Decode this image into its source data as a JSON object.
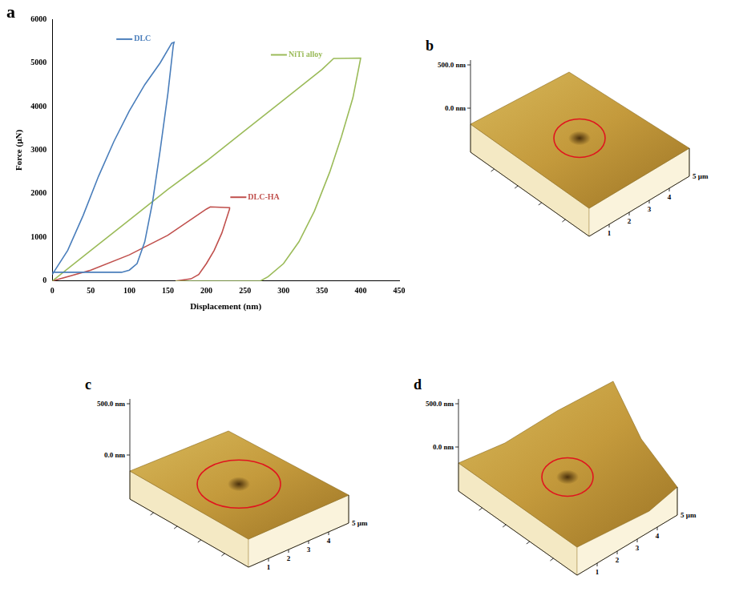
{
  "chart_data": {
    "type": "line",
    "panel_letter": "a",
    "x_label": "Displacement (nm)",
    "y_label": "Force (µN)",
    "xlim": [
      0,
      450
    ],
    "xticks": [
      0,
      50,
      100,
      150,
      200,
      250,
      300,
      350,
      400,
      450
    ],
    "ylim": [
      0,
      6000
    ],
    "yticks": [
      0,
      1000,
      2000,
      3000,
      4000,
      5000,
      6000
    ],
    "grid": false,
    "series": [
      {
        "name": "DLC",
        "color": "#4a7ebb",
        "x": [
          0,
          20,
          40,
          60,
          80,
          100,
          120,
          140,
          155,
          158,
          157,
          150,
          140,
          130,
          120,
          110,
          100,
          90,
          50,
          0
        ],
        "values": [
          150,
          700,
          1500,
          2400,
          3200,
          3900,
          4500,
          5000,
          5450,
          5470,
          5400,
          4300,
          3000,
          1800,
          900,
          400,
          250,
          200,
          200,
          200
        ]
      },
      {
        "name": "NiTi alloy",
        "color": "#9bbb59",
        "x": [
          0,
          50,
          100,
          150,
          200,
          250,
          300,
          350,
          365,
          400,
          400,
          390,
          375,
          360,
          340,
          320,
          300,
          280,
          270,
          160
        ],
        "values": [
          0,
          700,
          1400,
          2100,
          2750,
          3450,
          4150,
          4850,
          5100,
          5110,
          5100,
          4200,
          3300,
          2500,
          1600,
          900,
          400,
          100,
          0,
          0
        ]
      },
      {
        "name": "DLC-HA",
        "color": "#c0504d",
        "x": [
          0,
          50,
          100,
          150,
          200,
          205,
          230,
          230,
          220,
          210,
          200,
          190,
          180,
          160
        ],
        "values": [
          0,
          250,
          600,
          1050,
          1650,
          1700,
          1680,
          1650,
          1100,
          700,
          400,
          150,
          50,
          0
        ]
      }
    ]
  },
  "afm_panels": [
    {
      "letter": "b",
      "z_labels": [
        "500.0 nm",
        "0.0 nm"
      ],
      "axis_ticks": [
        "1",
        "2",
        "3",
        "4"
      ],
      "axis_end": "5 µm"
    },
    {
      "letter": "c",
      "z_labels": [
        "500.0 nm",
        "0.0 nm"
      ],
      "axis_ticks": [
        "1",
        "2",
        "3",
        "4"
      ],
      "axis_end": "5 µm"
    },
    {
      "letter": "d",
      "z_labels": [
        "500.0 nm",
        "0.0 nm"
      ],
      "axis_ticks": [
        "1",
        "2",
        "3",
        "4"
      ],
      "axis_end": "5 µm"
    }
  ]
}
